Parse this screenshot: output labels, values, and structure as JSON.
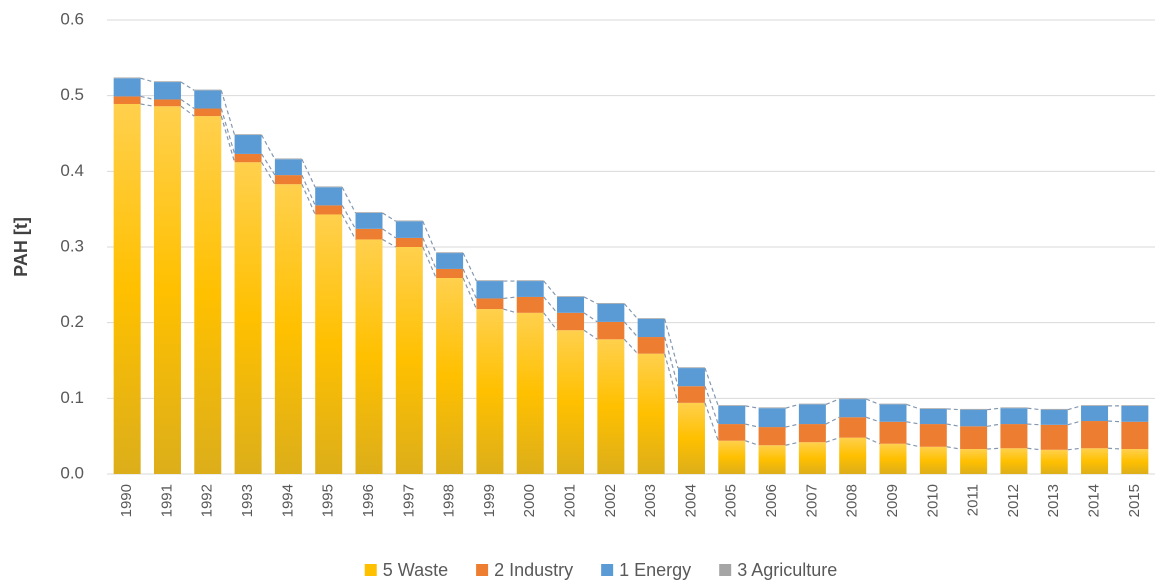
{
  "chart_data": {
    "type": "stacked_bar",
    "y_label": "PAH [t]",
    "categories": [
      "1990",
      "1991",
      "1992",
      "1993",
      "1994",
      "1995",
      "1996",
      "1997",
      "1998",
      "1999",
      "2000",
      "2001",
      "2002",
      "2003",
      "2004",
      "2005",
      "2006",
      "2007",
      "2008",
      "2009",
      "2010",
      "2011",
      "2012",
      "2013",
      "2014",
      "2015"
    ],
    "series": [
      {
        "name": "5 Waste",
        "color": "#ffc000",
        "values": [
          0.489,
          0.486,
          0.473,
          0.412,
          0.383,
          0.343,
          0.31,
          0.3,
          0.259,
          0.218,
          0.213,
          0.19,
          0.178,
          0.159,
          0.094,
          0.044,
          0.038,
          0.042,
          0.048,
          0.04,
          0.036,
          0.033,
          0.034,
          0.032,
          0.034,
          0.033
        ]
      },
      {
        "name": "2 Industry",
        "color": "#ed7d31",
        "values": [
          0.01,
          0.009,
          0.01,
          0.011,
          0.012,
          0.012,
          0.014,
          0.012,
          0.012,
          0.014,
          0.021,
          0.023,
          0.023,
          0.022,
          0.022,
          0.022,
          0.024,
          0.024,
          0.027,
          0.029,
          0.03,
          0.03,
          0.032,
          0.033,
          0.036,
          0.036
        ]
      },
      {
        "name": "1 Energy",
        "color": "#5b9bd5",
        "values": [
          0.024,
          0.023,
          0.024,
          0.025,
          0.021,
          0.024,
          0.021,
          0.022,
          0.021,
          0.023,
          0.021,
          0.021,
          0.024,
          0.024,
          0.024,
          0.024,
          0.025,
          0.026,
          0.024,
          0.023,
          0.02,
          0.022,
          0.021,
          0.02,
          0.02,
          0.021
        ]
      },
      {
        "name": "3 Agriculture",
        "color": "#a5a5a5",
        "values": [
          0.001,
          0.001,
          0.001,
          0.001,
          0.001,
          0.001,
          0.001,
          0.001,
          0.001,
          0.001,
          0.001,
          0.001,
          0.001,
          0.001,
          0.001,
          0.001,
          0.001,
          0.001,
          0.001,
          0.001,
          0.001,
          0.001,
          0.001,
          0.001,
          0.001,
          0.001
        ]
      }
    ],
    "ylim": [
      0,
      0.6
    ],
    "yticks": [
      {
        "value": 0,
        "label": "0.0"
      },
      0.1,
      0.2,
      0.3,
      0.4,
      0.5,
      0.6
    ],
    "grid": true,
    "connectors": true,
    "legend": "bottom"
  }
}
